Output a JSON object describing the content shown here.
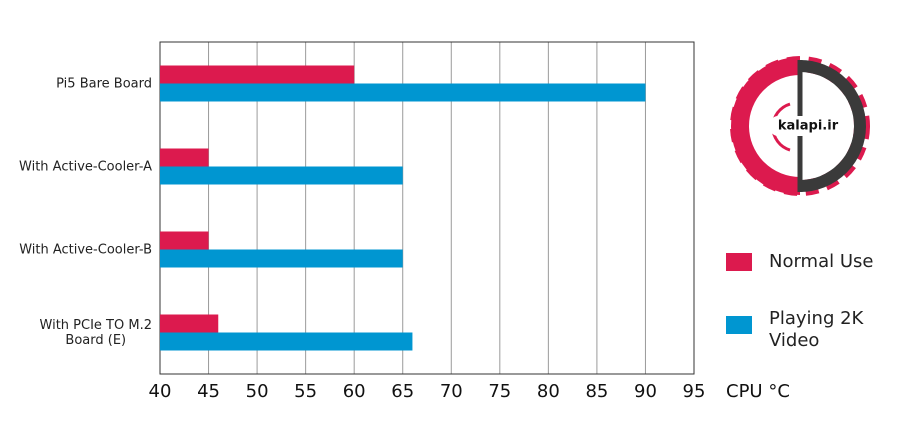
{
  "chart_data": {
    "type": "barh",
    "categories": [
      "Pi5 Bare Board",
      "With Active-Cooler-A",
      "With Active-Cooler-B",
      "With PCIe TO M.2\nBoard (E)"
    ],
    "series": [
      {
        "name": "Normal Use",
        "color": "#dc1a4e",
        "values": [
          60,
          45,
          45,
          46
        ]
      },
      {
        "name": "Playing 2K Video",
        "color": "#0096d1",
        "values": [
          90,
          65,
          65,
          66
        ]
      }
    ],
    "xlabel": "CPU °C",
    "xlim": [
      40,
      95
    ],
    "xticks": [
      40,
      45,
      50,
      55,
      60,
      65,
      70,
      75,
      80,
      85,
      90,
      95
    ],
    "grid": true,
    "logo_text": "kalapi.ir"
  }
}
